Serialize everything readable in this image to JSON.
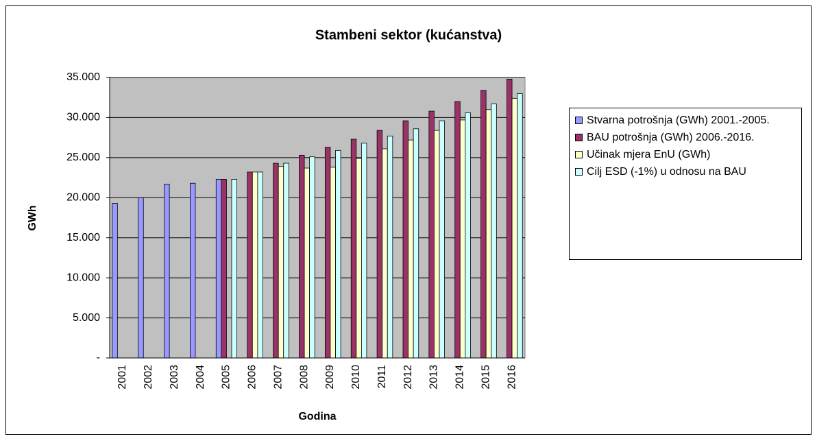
{
  "chart_data": {
    "type": "bar",
    "title": "Stambeni sektor (kućanstva)",
    "x_label": "Godina",
    "y_label": "GWh",
    "categories": [
      "2001",
      "2002",
      "2003",
      "2004",
      "2005",
      "2006",
      "2007",
      "2008",
      "2009",
      "2010",
      "2011",
      "2012",
      "2013",
      "2014",
      "2015",
      "2016"
    ],
    "series": [
      {
        "name": "Stvarna potrošnja (GWh) 2001.-2005.",
        "color": "#9999ff",
        "values": [
          19300,
          20000,
          21700,
          21800,
          22300,
          null,
          null,
          null,
          null,
          null,
          null,
          null,
          null,
          null,
          null,
          null
        ]
      },
      {
        "name": "BAU potrošnja (GWh) 2006.-2016.",
        "color": "#993366",
        "values": [
          null,
          null,
          null,
          null,
          22300,
          23200,
          24300,
          25300,
          26300,
          27300,
          28400,
          29600,
          30800,
          32000,
          33400,
          34800
        ]
      },
      {
        "name": "Učinak mjera EnU (GWh)",
        "color": "#ffffcc",
        "values": [
          null,
          null,
          null,
          null,
          null,
          23200,
          23900,
          23700,
          23800,
          24900,
          26100,
          27200,
          28400,
          29700,
          31000,
          32400
        ]
      },
      {
        "name": "Cilj ESD (-1%) u odnosu na BAU",
        "color": "#ccffff",
        "values": [
          null,
          null,
          null,
          null,
          22300,
          23200,
          24300,
          25100,
          25900,
          26800,
          27700,
          28600,
          29600,
          30600,
          31700,
          33000
        ]
      }
    ],
    "ylim": [
      0,
      35000
    ],
    "yticks": [
      {
        "value": 0,
        "label": "-"
      },
      {
        "value": 5000,
        "label": "5.000"
      },
      {
        "value": 10000,
        "label": "10.000"
      },
      {
        "value": 15000,
        "label": "15.000"
      },
      {
        "value": 20000,
        "label": "20.000"
      },
      {
        "value": 25000,
        "label": "25.000"
      },
      {
        "value": 30000,
        "label": "30.000"
      },
      {
        "value": 35000,
        "label": "35.000"
      }
    ],
    "grid": true,
    "legend": "right",
    "plot_background": "#c0c0c0"
  }
}
